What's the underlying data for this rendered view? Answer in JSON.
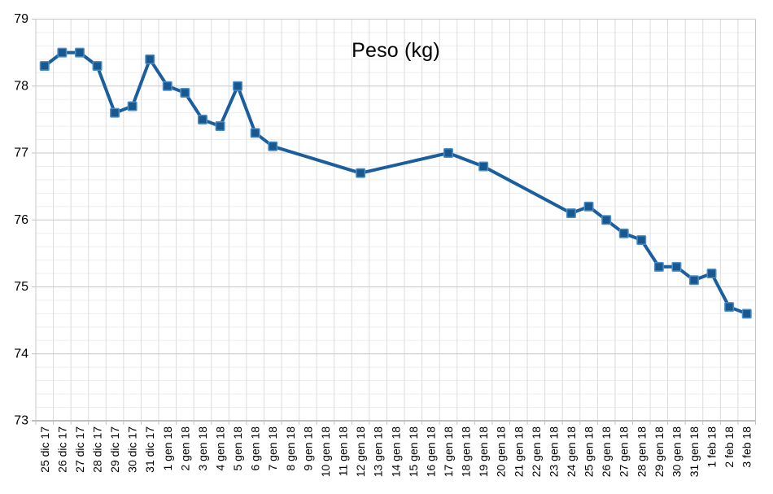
{
  "chart_data": {
    "type": "line",
    "title": "Peso (kg)",
    "xlabel": "",
    "ylabel": "",
    "legend_position": "none",
    "grid": true,
    "ylim": [
      73,
      79
    ],
    "y_major_step": 1,
    "y_minor_step": 0.2,
    "y_tick_labels": [
      "79",
      "78",
      "77",
      "76",
      "75",
      "74",
      "73"
    ],
    "categories": [
      "25 dic 17",
      "26 dic 17",
      "27 dic 17",
      "28 dic 17",
      "29 dic 17",
      "30 dic 17",
      "31 dic 17",
      "1 gen 18",
      "2 gen 18",
      "3 gen 18",
      "4 gen 18",
      "5 gen 18",
      "6 gen 18",
      "7 gen 18",
      "8 gen 18",
      "9 gen 18",
      "10 gen 18",
      "11 gen 18",
      "12 gen 18",
      "13 gen 18",
      "14 gen 18",
      "15 gen 18",
      "16 gen 18",
      "17 gen 18",
      "18 gen 18",
      "19 gen 18",
      "20 gen 18",
      "21 gen 18",
      "22 gen 18",
      "23 gen 18",
      "24 gen 18",
      "25 gen 18",
      "26 gen 18",
      "27 gen 18",
      "28 gen 18",
      "29 gen 18",
      "30 gen 18",
      "31 gen 18",
      "1 feb 18",
      "2 feb 18",
      "3 feb 18"
    ],
    "series": [
      {
        "name": "Peso (kg)",
        "values": [
          78.3,
          78.5,
          78.5,
          78.3,
          77.6,
          77.7,
          78.4,
          78.0,
          77.9,
          77.5,
          77.4,
          78.0,
          77.3,
          77.1,
          null,
          null,
          null,
          null,
          76.7,
          null,
          null,
          null,
          null,
          77.0,
          null,
          76.8,
          null,
          null,
          null,
          null,
          76.1,
          76.2,
          76.0,
          75.8,
          75.7,
          75.3,
          75.3,
          75.1,
          75.2,
          74.7,
          74.6
        ]
      }
    ],
    "marker": "square",
    "colors": {
      "line": "#1b5e9e",
      "marker_fill": "#18588f",
      "marker_stroke": "#4b8fca",
      "grid_vertical": "#dcdcdc",
      "grid_minor_horizontal": "#ededed",
      "grid_major_horizontal": "#c8c8c8",
      "axis_line": "#ababab",
      "tick": "#c2c2c2",
      "text": "#000000",
      "background": "#ffffff"
    }
  }
}
